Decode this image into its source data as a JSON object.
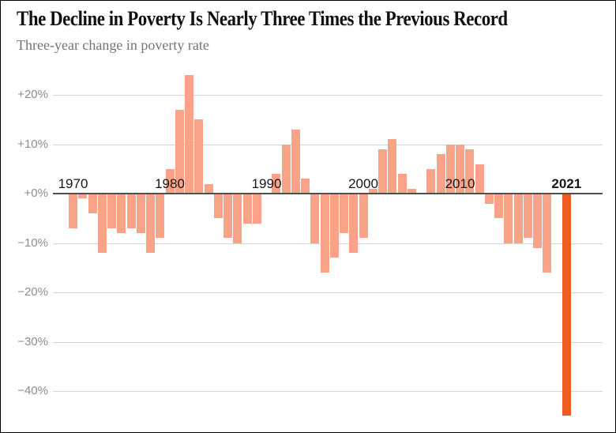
{
  "header": {
    "title": "The Decline in Poverty Is Nearly Three Times the Previous Record",
    "subtitle": "Three-year change in poverty rate"
  },
  "chart_data": {
    "type": "bar",
    "title": "The Decline in Poverty Is Nearly Three Times the Previous Record",
    "subtitle": "Three-year change in poverty rate",
    "unit": "percent change over three years",
    "grid": true,
    "legend": "none",
    "ylim": [
      -47,
      26
    ],
    "years": [
      1970,
      1971,
      1972,
      1973,
      1974,
      1975,
      1976,
      1977,
      1978,
      1979,
      1980,
      1981,
      1982,
      1983,
      1984,
      1985,
      1986,
      1987,
      1988,
      1989,
      1990,
      1991,
      1992,
      1993,
      1994,
      1995,
      1996,
      1997,
      1998,
      1999,
      2000,
      2001,
      2002,
      2003,
      2004,
      2005,
      2006,
      2007,
      2008,
      2009,
      2010,
      2011,
      2012,
      2013,
      2014,
      2015,
      2016,
      2017,
      2018,
      2019,
      2020,
      2021
    ],
    "values": [
      -7,
      -1,
      -4,
      -12,
      -7,
      -8,
      -7,
      -8,
      -12,
      -9,
      5,
      17,
      24,
      15,
      2,
      -5,
      -9,
      -10,
      -6,
      -6,
      0,
      4,
      10,
      13,
      3,
      -10,
      -16,
      -13,
      -8,
      -12,
      -9,
      1,
      9,
      11,
      4,
      1,
      0,
      5,
      8,
      10,
      10,
      9,
      6,
      -2,
      -5,
      -10,
      -10,
      -9,
      -11,
      -16,
      0,
      -45
    ],
    "highlight_year": 2021,
    "highlight_value": -45,
    "x_axis_labels": [
      1970,
      1980,
      1990,
      2000,
      2010,
      2021
    ],
    "y_ticks": [
      {
        "value": 20,
        "label": "+20%"
      },
      {
        "value": 10,
        "label": "+10%"
      },
      {
        "value": 0,
        "label": "+0%"
      },
      {
        "value": -10,
        "label": "−10%"
      },
      {
        "value": -20,
        "label": "−20%"
      },
      {
        "value": -30,
        "label": "−30%"
      },
      {
        "value": -40,
        "label": "−40%"
      }
    ],
    "colors": {
      "bar": "#f8a287",
      "bar_highlight": "#f15b22",
      "gridline": "#d4d4d4",
      "zero_line": "#4f4f4f",
      "axis_text": "#8c8c8c",
      "year_text": "#161616",
      "title_text": "#111111",
      "subtitle_text": "#747474"
    }
  }
}
